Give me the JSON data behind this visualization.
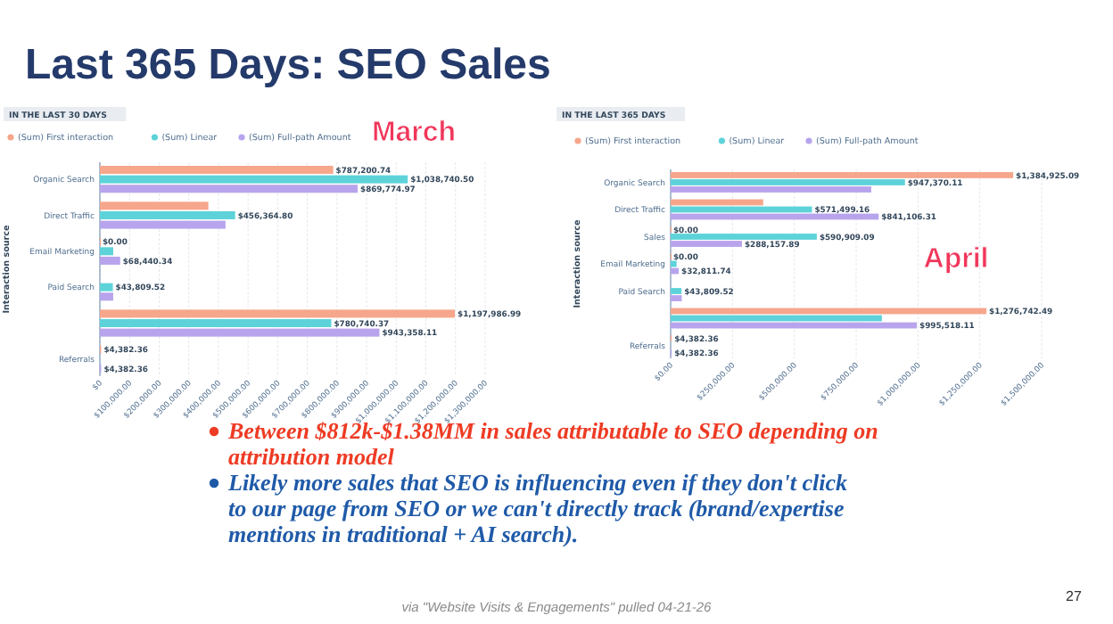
{
  "chart_data": [
    {
      "type": "other",
      "title": "Last 365 Days: SEO Sales",
      "annotations": [
        "Between $812k-$1.38MM in sales attributable to SEO depending on attribution model",
        "Likely more sales that SEO is influencing even if they don't click to our page from SEO or we can't directly track (brand/expertise mentions in traditional + AI search).",
        "via \"Website Visits & Engagements\" pulled 04-21-26",
        "27"
      ]
    },
    {
      "type": "bar",
      "orientation": "horizontal",
      "subtitle": "IN THE LAST 30 DAYS",
      "ylabel": "Interaction source",
      "annotations": [
        "March"
      ],
      "legend": "top left",
      "grid": "x",
      "categories": [
        "Organic Search",
        "Direct Traffic",
        "Email Marketing",
        "Paid Search",
        null,
        "Referrals"
      ],
      "xlim": [
        0,
        1300000
      ],
      "xticks": [
        {
          "value": 0,
          "label": "$0"
        },
        {
          "value": 100000,
          "label": "$100,000.00"
        },
        {
          "value": 200000,
          "label": "$200,000.00"
        },
        {
          "value": 300000,
          "label": "$300,000.00"
        },
        {
          "value": 400000,
          "label": "$400,000.00"
        },
        {
          "value": 500000,
          "label": "$500,000.00"
        },
        {
          "value": 600000,
          "label": "$600,000.00"
        },
        {
          "value": 700000,
          "label": "$700,000.00"
        },
        {
          "value": 800000,
          "label": "$800,000.00"
        },
        {
          "value": 900000,
          "label": "$900,000.00"
        },
        {
          "value": 1000000,
          "label": "$1,000,000.00"
        },
        {
          "value": 1100000,
          "label": "$1,100,000.00"
        },
        {
          "value": 1200000,
          "label": "$1,200,000.00"
        },
        {
          "value": 1300000,
          "label": "$1,300,000.00"
        }
      ],
      "series": [
        {
          "name": "(Sum) First interaction",
          "color": "#f6a68b",
          "values": [
            787200.74,
            366000,
            0,
            null,
            1197986.99,
            4382.36
          ],
          "value_labels": [
            "$787,200.74",
            null,
            "$0.00",
            null,
            "$1,197,986.99",
            "$4,382.36"
          ]
        },
        {
          "name": "(Sum) Linear",
          "color": "#5dd3d9",
          "values": [
            1038740.5,
            456364.8,
            45000,
            43809.52,
            780740.37,
            null
          ],
          "value_labels": [
            "$1,038,740.50",
            "$456,364.80",
            null,
            "$43,809.52",
            "$780,740.37",
            null
          ]
        },
        {
          "name": "(Sum) Full-path Amount",
          "color": "#b8a4ec",
          "values": [
            869774.97,
            424000,
            68440.34,
            45000,
            943358.11,
            4382.36
          ],
          "value_labels": [
            "$869,774.97",
            null,
            "$68,440.34",
            null,
            "$943,358.11",
            "$4,382.36"
          ]
        }
      ]
    },
    {
      "type": "bar",
      "orientation": "horizontal",
      "subtitle": "IN THE LAST 365 DAYS",
      "ylabel": "Interaction source",
      "annotations": [
        "April"
      ],
      "legend": "top left",
      "grid": "x",
      "categories": [
        "Organic Search",
        "Direct Traffic",
        "Sales",
        "Email Marketing",
        "Paid Search",
        null,
        "Referrals"
      ],
      "xlim": [
        0,
        1500000
      ],
      "xticks": [
        {
          "value": 0,
          "label": "$0.00"
        },
        {
          "value": 250000,
          "label": "$250,000.00"
        },
        {
          "value": 500000,
          "label": "$500,000.00"
        },
        {
          "value": 750000,
          "label": "$750,000.00"
        },
        {
          "value": 1000000,
          "label": "$1,000,000.00"
        },
        {
          "value": 1250000,
          "label": "$1,250,000.00"
        },
        {
          "value": 1500000,
          "label": "$1,500,000.00"
        }
      ],
      "series": [
        {
          "name": "(Sum) First interaction",
          "color": "#f6a68b",
          "values": [
            1384925.09,
            374000,
            0,
            0,
            null,
            1276742.49,
            4382.36
          ],
          "value_labels": [
            "$1,384,925.09",
            null,
            "$0.00",
            "$0.00",
            null,
            "$1,276,742.49",
            "$4,382.36"
          ]
        },
        {
          "name": "(Sum) Linear",
          "color": "#5dd3d9",
          "values": [
            947370.11,
            571499.16,
            590909.09,
            24000,
            43809.52,
            854000,
            null
          ],
          "value_labels": [
            "$947,370.11",
            "$571,499.16",
            "$590,909.09",
            null,
            "$43,809.52",
            null,
            null
          ]
        },
        {
          "name": "(Sum) Full-path Amount",
          "color": "#b8a4ec",
          "values": [
            811000,
            841106.31,
            288157.89,
            32811.74,
            45000,
            995518.11,
            4382.36
          ],
          "value_labels": [
            null,
            "$841,106.31",
            "$288,157.89",
            "$32,811.74",
            null,
            "$995,518.11",
            "$4,382.36"
          ]
        }
      ]
    }
  ]
}
